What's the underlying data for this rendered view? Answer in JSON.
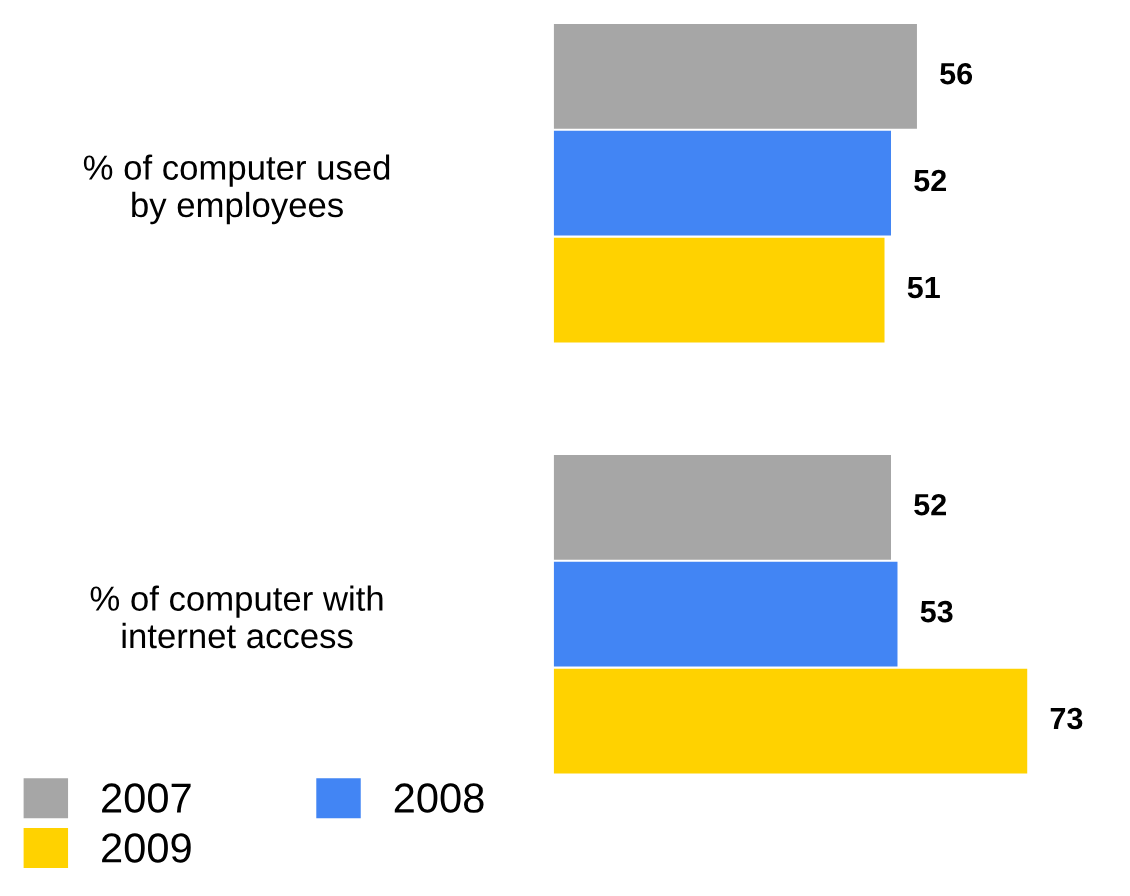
{
  "chart_data": {
    "type": "bar",
    "orientation": "horizontal",
    "categories": [
      "% of computer used\nby employees",
      "% of computer with\ninternet access"
    ],
    "series": [
      {
        "name": "2007",
        "color": "#a6a6a6",
        "values": [
          56,
          52
        ]
      },
      {
        "name": "2008",
        "color": "#4285f4",
        "values": [
          52,
          53
        ]
      },
      {
        "name": "2009",
        "color": "#ffd200",
        "values": [
          51,
          73
        ]
      }
    ],
    "data_labels": true,
    "legend": "bottom left",
    "grid": false,
    "tick_labels": "y"
  }
}
